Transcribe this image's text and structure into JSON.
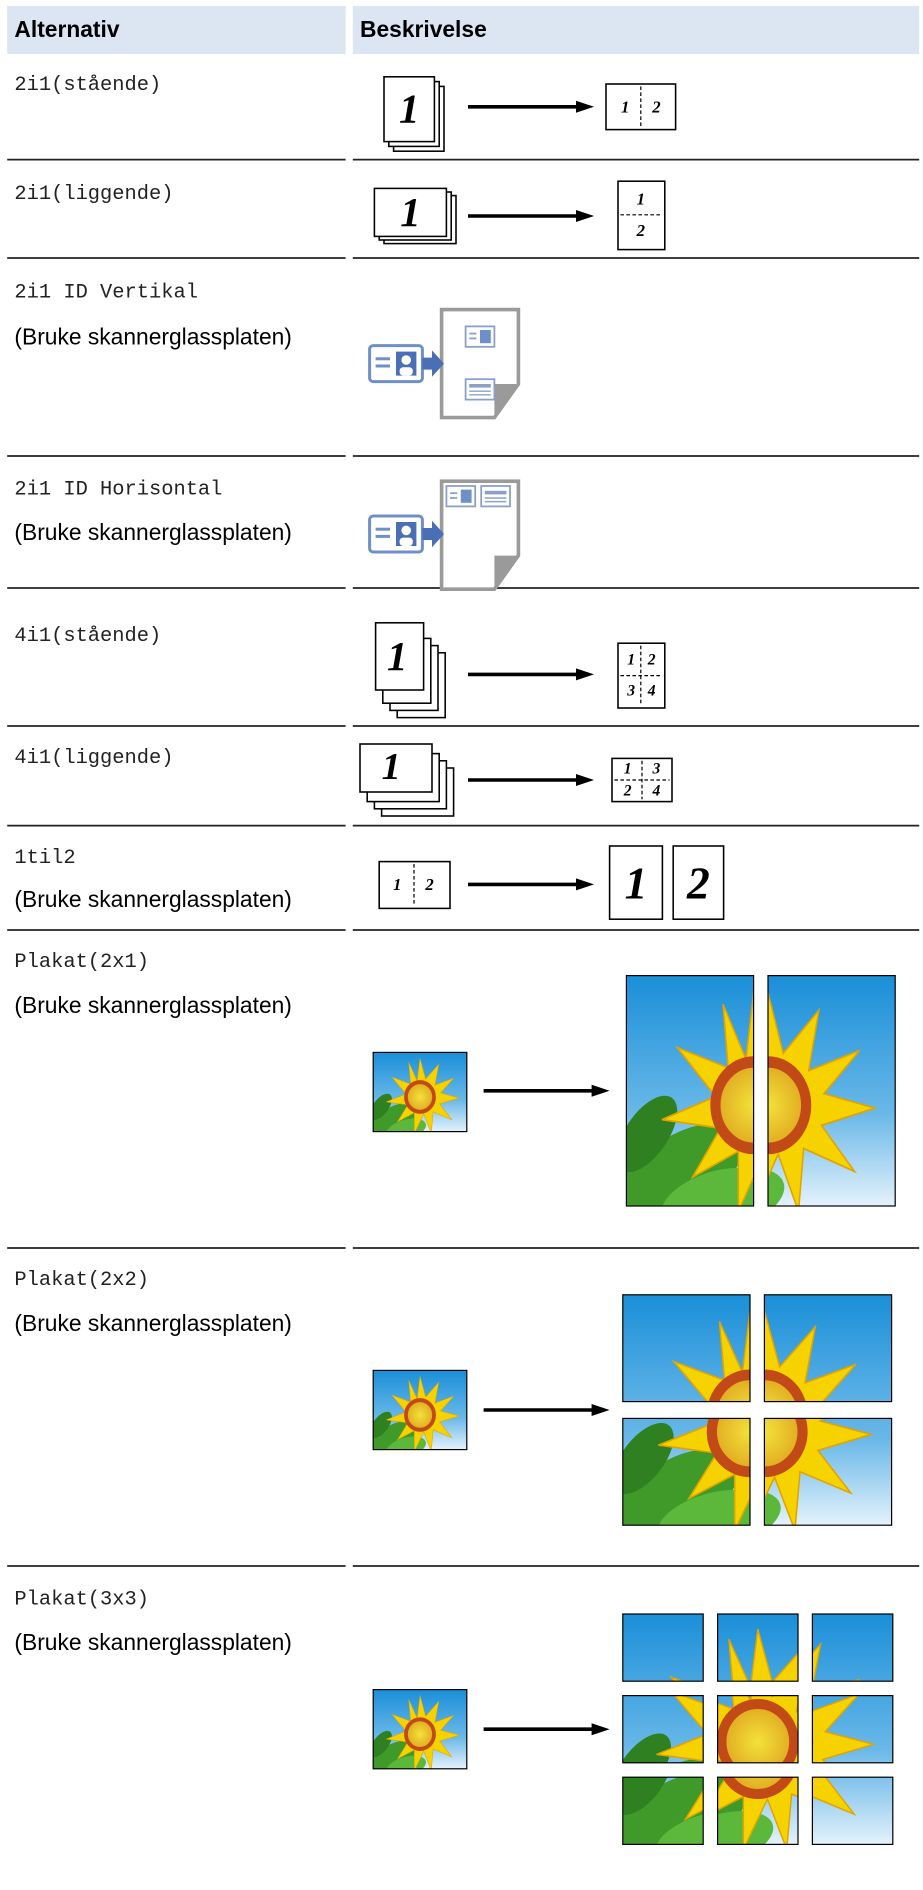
{
  "table": {
    "headers": [
      "Alternativ",
      "Beskrivelse"
    ],
    "rows": [
      {
        "option": "2i1(stående)",
        "figure": [
          "1",
          "1",
          "2"
        ]
      },
      {
        "option": "2i1(liggende)",
        "figure": [
          "1",
          "1",
          "2"
        ]
      },
      {
        "option": "2i1 ID Vertikal",
        "note": "(Bruke skannerglassplaten)"
      },
      {
        "option": "2i1 ID Horisontal",
        "note": "(Bruke skannerglassplaten)"
      },
      {
        "option": "4i1(stående)",
        "figure": [
          "1",
          "1",
          "2",
          "3",
          "4"
        ]
      },
      {
        "option": "4i1(liggende)",
        "figure": [
          "1",
          "1",
          "3",
          "2",
          "4"
        ]
      },
      {
        "option": "1til2",
        "note": "(Bruke skannerglassplaten)",
        "figure": [
          "1",
          "2",
          "1",
          "2"
        ]
      },
      {
        "option": "Plakat(2x1)",
        "note": "(Bruke skannerglassplaten)"
      },
      {
        "option": "Plakat(2x2)",
        "note": "(Bruke skannerglassplaten)"
      },
      {
        "option": "Plakat(3x3)",
        "note": "(Bruke skannerglassplaten)"
      }
    ]
  }
}
